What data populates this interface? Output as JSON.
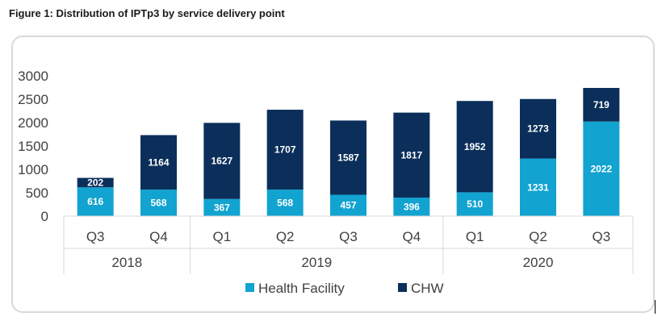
{
  "figure_title": "Figure 1: Distribution of IPTp3 by service delivery point",
  "chart_data": {
    "type": "bar",
    "stacked": true,
    "categories": [
      "Q3",
      "Q4",
      "Q1",
      "Q2",
      "Q3",
      "Q4",
      "Q1",
      "Q2",
      "Q3"
    ],
    "groups": [
      {
        "label": "2018",
        "span": 2
      },
      {
        "label": "2019",
        "span": 4
      },
      {
        "label": "2020",
        "span": 3
      }
    ],
    "series": [
      {
        "name": "Health Facility",
        "color": "#12a3d1",
        "values": [
          616,
          568,
          367,
          568,
          457,
          396,
          510,
          1231,
          2022
        ]
      },
      {
        "name": "CHW",
        "color": "#0b2f5a",
        "values": [
          202,
          1164,
          1627,
          1707,
          1587,
          1817,
          1952,
          1273,
          719
        ]
      }
    ],
    "yticks": [
      "0",
      "500",
      "1000",
      "1500",
      "2000",
      "2500",
      "3000"
    ],
    "ylim": [
      0,
      3000
    ],
    "grid": false,
    "legend_position": "bottom"
  }
}
